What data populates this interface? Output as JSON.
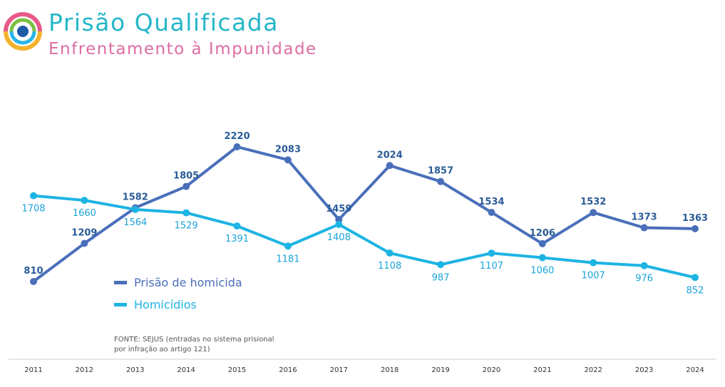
{
  "header": {
    "title": "Prisão Qualificada",
    "subtitle": "Enfrentamento à Impunidade"
  },
  "source_note": "FONTE: SEJUS (entradas no sistema prisional por infração ao artigo 121)",
  "colors": {
    "title": "#25b6c9",
    "subtitle": "#dd6da4",
    "series_1": "#4a6fba",
    "series_2": "#1db4e3",
    "logo_outer_top": "#e8598a",
    "logo_outer_bottom": "#f2b22b",
    "logo_middle_top": "#7ac142",
    "logo_middle_bottom": "#29b6e6",
    "logo_center": "#1d5aa6"
  },
  "chart_data": {
    "type": "line",
    "categories": [
      "2011",
      "2012",
      "2013",
      "2014",
      "2015",
      "2016",
      "2017",
      "2018",
      "2019",
      "2020",
      "2021",
      "2022",
      "2023",
      "2024"
    ],
    "series": [
      {
        "name": "Prisão de homicida",
        "values": [
          810,
          1209,
          1582,
          1805,
          2220,
          2083,
          1459,
          2024,
          1857,
          1534,
          1206,
          1532,
          1373,
          1363
        ]
      },
      {
        "name": "Homicídios",
        "values": [
          1708,
          1660,
          1564,
          1529,
          1391,
          1181,
          1408,
          1108,
          987,
          1107,
          1060,
          1007,
          976,
          852
        ]
      }
    ],
    "legend_position": "bottom-left",
    "grid": false,
    "ylim": [
      0,
      2500
    ]
  }
}
